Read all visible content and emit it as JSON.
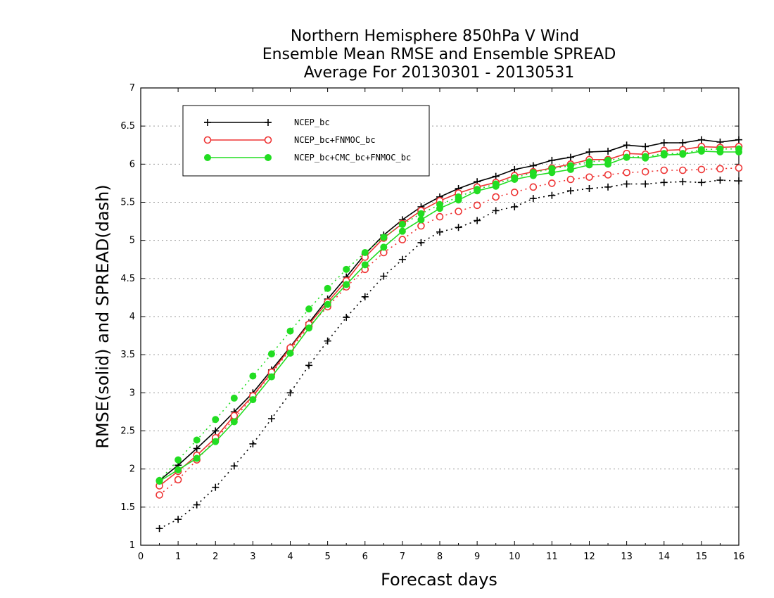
{
  "chart_data": {
    "type": "line",
    "title": [
      "Northern Hemisphere 850hPa V Wind",
      "Ensemble Mean RMSE and Ensemble SPREAD",
      "Average For 20130301 - 20130531"
    ],
    "xlabel": "Forecast days",
    "ylabel": "RMSE(solid) and SPREAD(dash)",
    "xlim": [
      0,
      16
    ],
    "ylim": [
      1,
      7
    ],
    "xticks": [
      0,
      1,
      2,
      3,
      4,
      5,
      6,
      7,
      8,
      9,
      10,
      11,
      12,
      13,
      14,
      15,
      16
    ],
    "yticks": [
      1,
      1.5,
      2,
      2.5,
      3,
      3.5,
      4,
      4.5,
      5,
      5.5,
      6,
      6.5,
      7
    ],
    "grid": "horizontal dotted",
    "legend_position": "top-left",
    "x": [
      0.5,
      1,
      1.5,
      2,
      2.5,
      3,
      3.5,
      4,
      4.5,
      5,
      5.5,
      6,
      6.5,
      7,
      7.5,
      8,
      8.5,
      9,
      9.5,
      10,
      10.5,
      11,
      11.5,
      12,
      12.5,
      13,
      13.5,
      14,
      14.5,
      15,
      15.5,
      16
    ],
    "series": [
      {
        "name": "NCEP_bc",
        "color": "#000000",
        "marker": "plus",
        "rmse": [
          1.85,
          2.05,
          2.27,
          2.5,
          2.75,
          3.0,
          3.3,
          3.6,
          3.92,
          4.23,
          4.52,
          4.82,
          5.07,
          5.27,
          5.44,
          5.57,
          5.68,
          5.77,
          5.84,
          5.93,
          5.98,
          6.05,
          6.09,
          6.16,
          6.17,
          6.25,
          6.23,
          6.28,
          6.28,
          6.32,
          6.29,
          6.32
        ],
        "spread": [
          1.22,
          1.34,
          1.53,
          1.76,
          2.04,
          2.33,
          2.66,
          3.0,
          3.36,
          3.68,
          3.99,
          4.26,
          4.53,
          4.75,
          4.97,
          5.11,
          5.17,
          5.26,
          5.39,
          5.44,
          5.55,
          5.59,
          5.65,
          5.68,
          5.7,
          5.74,
          5.74,
          5.76,
          5.77,
          5.76,
          5.79,
          5.78
        ]
      },
      {
        "name": "NCEP_bc+FNMOC_bc",
        "color": "#ee3333",
        "marker": "open-circle",
        "rmse": [
          1.78,
          1.97,
          2.18,
          2.41,
          2.7,
          2.96,
          3.27,
          3.59,
          3.9,
          4.19,
          4.47,
          4.78,
          5.03,
          5.22,
          5.39,
          5.52,
          5.62,
          5.7,
          5.76,
          5.85,
          5.9,
          5.95,
          6.0,
          6.06,
          6.06,
          6.14,
          6.13,
          6.18,
          6.19,
          6.23,
          6.22,
          6.23
        ],
        "spread": [
          1.66,
          1.86,
          2.12,
          2.39,
          2.66,
          2.95,
          3.25,
          3.57,
          3.87,
          4.13,
          4.39,
          4.62,
          4.84,
          5.01,
          5.19,
          5.31,
          5.38,
          5.46,
          5.57,
          5.63,
          5.7,
          5.75,
          5.8,
          5.83,
          5.86,
          5.89,
          5.9,
          5.92,
          5.92,
          5.93,
          5.94,
          5.95
        ]
      },
      {
        "name": "NCEP_bc+CMC_bc+FNMOC_bc",
        "color": "#22dd22",
        "marker": "filled-circle",
        "rmse": [
          1.84,
          1.99,
          2.14,
          2.36,
          2.62,
          2.91,
          3.21,
          3.52,
          3.85,
          4.16,
          4.42,
          4.68,
          4.91,
          5.12,
          5.27,
          5.42,
          5.53,
          5.65,
          5.71,
          5.8,
          5.85,
          5.89,
          5.93,
          5.99,
          6.0,
          6.09,
          6.08,
          6.12,
          6.13,
          6.17,
          6.16,
          6.16
        ],
        "spread": [
          1.85,
          2.12,
          2.38,
          2.65,
          2.93,
          3.22,
          3.51,
          3.81,
          4.1,
          4.37,
          4.62,
          4.84,
          5.04,
          5.21,
          5.35,
          5.47,
          5.57,
          5.67,
          5.74,
          5.82,
          5.89,
          5.94,
          5.98,
          6.03,
          6.05,
          6.09,
          6.1,
          6.14,
          6.14,
          6.19,
          6.2,
          6.2
        ]
      }
    ]
  }
}
